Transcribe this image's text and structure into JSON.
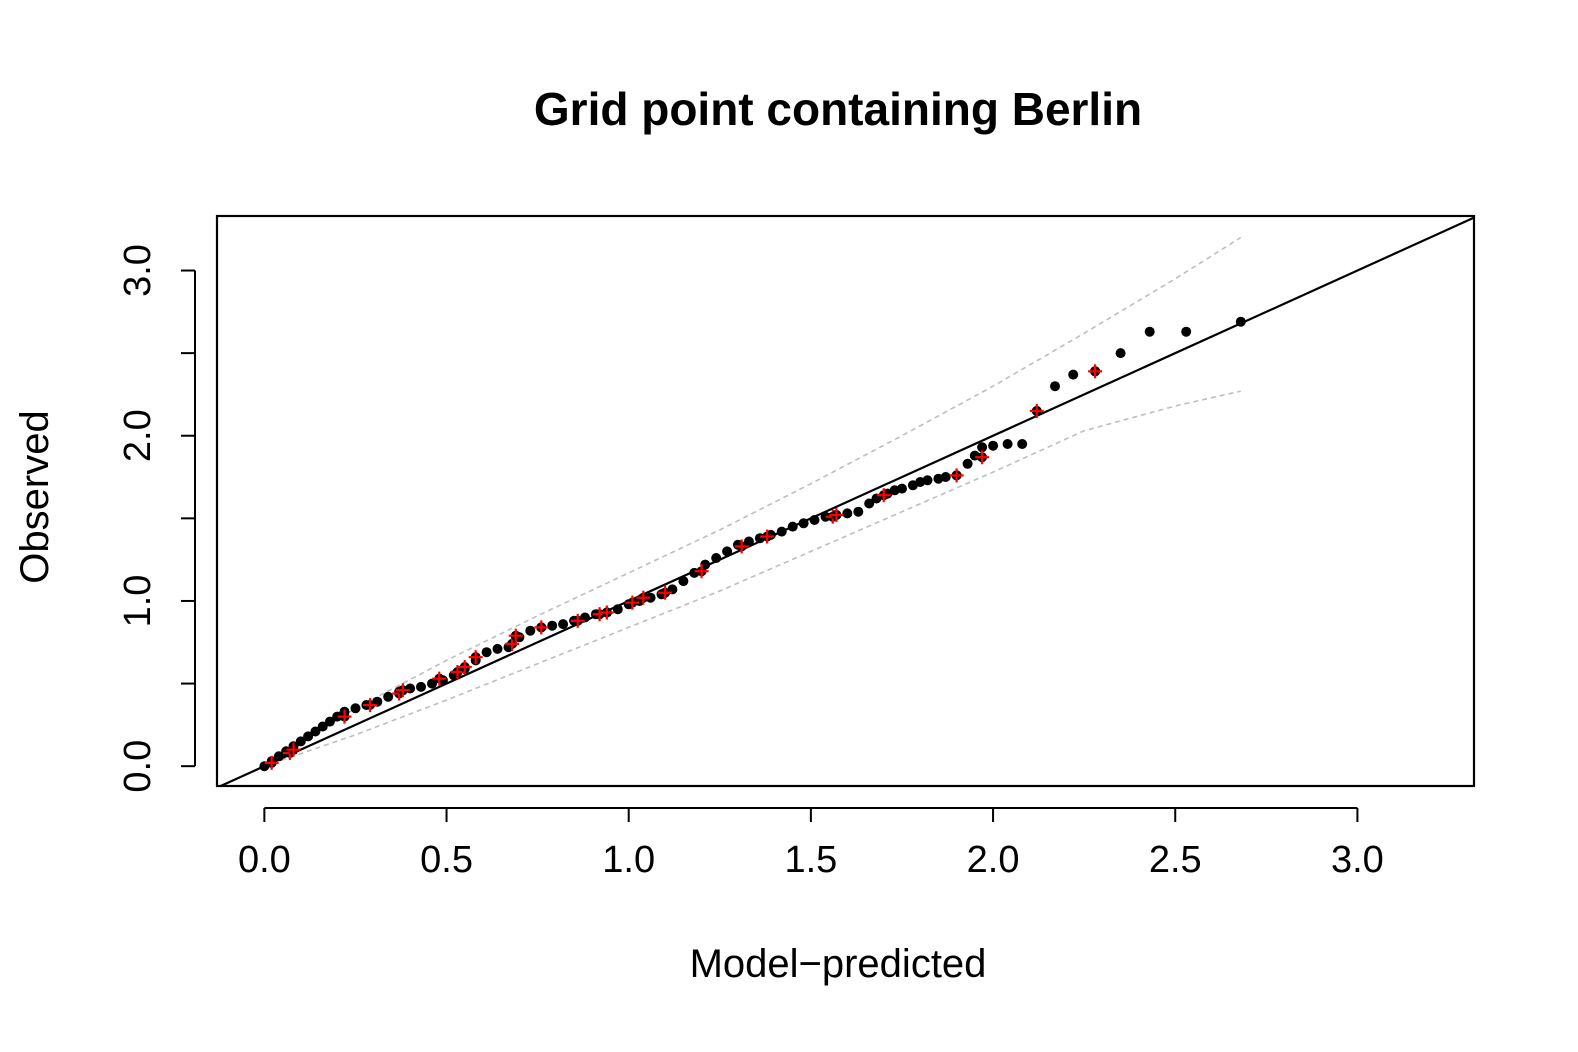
{
  "chart_data": {
    "type": "scatter",
    "title": "Grid point containing Berlin",
    "xlabel": "Model−predicted",
    "ylabel": "Observed",
    "xlim": [
      -0.13,
      3.32
    ],
    "ylim": [
      -0.12,
      3.33
    ],
    "x_ticks": [
      0.0,
      0.5,
      1.0,
      1.5,
      2.0,
      2.5,
      3.0
    ],
    "x_tick_labels": [
      "0.0",
      "0.5",
      "1.0",
      "1.5",
      "2.0",
      "2.5",
      "3.0"
    ],
    "y_ticks": [
      0.0,
      0.5,
      1.0,
      1.5,
      2.0,
      2.5,
      3.0
    ],
    "y_tick_labels": [
      "0.0",
      "",
      "1.0",
      "",
      "2.0",
      "",
      "3.0"
    ],
    "grid": false,
    "reference_line": {
      "slope": 1,
      "intercept": 0,
      "color": "#000000"
    },
    "colors": {
      "points": "#000000",
      "highlight": "#ff0000",
      "envelope": "#bebebe"
    },
    "series": [
      {
        "marker": "dot",
        "x": [
          0.0,
          0.02,
          0.04,
          0.06,
          0.08,
          0.1,
          0.12,
          0.14,
          0.16,
          0.18,
          0.2,
          0.22,
          0.25,
          0.28,
          0.31,
          0.34,
          0.37,
          0.4,
          0.43,
          0.46,
          0.49,
          0.52,
          0.55,
          0.58,
          0.61,
          0.64,
          0.67,
          0.7,
          0.73,
          0.76,
          0.79,
          0.82,
          0.85,
          0.88,
          0.91,
          0.94,
          0.97,
          1.0,
          1.03,
          1.06,
          1.09,
          1.12,
          1.15,
          1.18,
          1.21,
          1.24,
          1.27,
          1.3,
          1.33,
          1.36,
          1.39,
          1.42,
          1.45,
          1.48,
          1.51,
          1.54,
          1.57,
          1.6,
          1.63,
          1.66,
          1.68,
          1.71,
          1.73,
          1.75,
          1.78,
          1.8,
          1.82,
          1.85,
          1.87,
          1.9,
          1.93,
          1.95,
          1.97,
          2.0,
          2.04,
          2.08,
          2.12,
          2.17,
          2.22,
          2.28,
          2.35,
          2.43,
          2.53,
          2.68
        ],
        "y": [
          0.0,
          0.03,
          0.06,
          0.09,
          0.12,
          0.15,
          0.18,
          0.21,
          0.24,
          0.27,
          0.3,
          0.33,
          0.35,
          0.37,
          0.39,
          0.42,
          0.45,
          0.47,
          0.48,
          0.5,
          0.52,
          0.55,
          0.59,
          0.64,
          0.69,
          0.71,
          0.72,
          0.78,
          0.82,
          0.84,
          0.85,
          0.86,
          0.88,
          0.9,
          0.92,
          0.93,
          0.95,
          0.98,
          1.0,
          1.02,
          1.04,
          1.07,
          1.12,
          1.17,
          1.22,
          1.26,
          1.3,
          1.34,
          1.36,
          1.38,
          1.4,
          1.42,
          1.45,
          1.47,
          1.49,
          1.51,
          1.52,
          1.53,
          1.54,
          1.59,
          1.62,
          1.65,
          1.67,
          1.68,
          1.7,
          1.72,
          1.73,
          1.74,
          1.75,
          1.76,
          1.83,
          1.88,
          1.93,
          1.94,
          1.95,
          1.95,
          2.15,
          2.3,
          2.37,
          2.39,
          2.5,
          2.63,
          2.63,
          2.69
        ]
      },
      {
        "marker": "plus",
        "x": [
          0.02,
          0.07,
          0.08,
          0.22,
          0.29,
          0.37,
          0.38,
          0.48,
          0.53,
          0.55,
          0.58,
          0.68,
          0.69,
          0.76,
          0.86,
          0.92,
          0.94,
          1.01,
          1.04,
          1.1,
          1.2,
          1.31,
          1.38,
          1.56,
          1.57,
          1.7,
          1.9,
          1.97,
          2.12,
          2.28
        ],
        "y": [
          0.02,
          0.08,
          0.1,
          0.3,
          0.37,
          0.44,
          0.46,
          0.53,
          0.57,
          0.6,
          0.66,
          0.74,
          0.79,
          0.84,
          0.88,
          0.92,
          0.93,
          0.99,
          1.02,
          1.05,
          1.18,
          1.33,
          1.39,
          1.51,
          1.52,
          1.64,
          1.76,
          1.87,
          2.15,
          2.39
        ]
      }
    ],
    "envelope_upper": {
      "x": [
        0.0,
        0.25,
        0.5,
        0.75,
        1.0,
        1.25,
        1.5,
        1.75,
        2.0,
        2.25,
        2.5,
        2.68
      ],
      "y": [
        0.0,
        0.35,
        0.64,
        0.91,
        1.17,
        1.43,
        1.71,
        2.0,
        2.3,
        2.62,
        2.95,
        3.2
      ]
    },
    "envelope_lower": {
      "x": [
        0.0,
        0.25,
        0.5,
        0.75,
        1.0,
        1.25,
        1.5,
        1.75,
        2.0,
        2.25,
        2.5,
        2.68
      ],
      "y": [
        0.0,
        0.19,
        0.4,
        0.62,
        0.84,
        1.06,
        1.3,
        1.54,
        1.78,
        2.03,
        2.18,
        2.27
      ]
    }
  }
}
